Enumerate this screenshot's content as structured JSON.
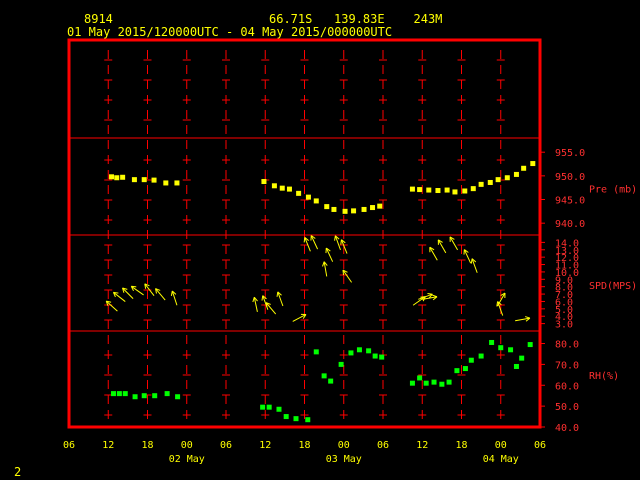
{
  "header": {
    "station_id": "8914",
    "location": "66.71S   139.83E    243M",
    "period": "01 May 2015/120000UTC - 04 May 2015/000000UTC"
  },
  "footer": {
    "page_number": "2"
  },
  "colors": {
    "frame": "#ff0000",
    "axis_text": "#ffff00",
    "pressure": "#ffff00",
    "wind": "#ffff00",
    "rh": "#00ff00",
    "label_text": "#ff3030"
  },
  "chart_data": {
    "type": "scatter",
    "x_unit": "hours since 01 May 2015 06UTC",
    "xlim": [
      0,
      72
    ],
    "x_tick_labels": [
      "06",
      "12",
      "18",
      "00",
      "06",
      "12",
      "18",
      "00",
      "06",
      "12",
      "18",
      "00",
      "06"
    ],
    "day_labels": [
      {
        "x": 18,
        "label": "02 May"
      },
      {
        "x": 42,
        "label": "03 May"
      },
      {
        "x": 66,
        "label": "04 May"
      }
    ],
    "panels": [
      {
        "name": "pressure",
        "label": "Pre (mb)",
        "ylim": [
          937.5,
          958.0
        ],
        "ticks": [
          "940.0",
          "945.0",
          "950.0",
          "955.0"
        ],
        "tick_values": [
          940,
          945,
          950,
          955
        ],
        "points": [
          [
            6.5,
            949.8
          ],
          [
            7.3,
            949.6
          ],
          [
            8.2,
            949.7
          ],
          [
            10,
            949.2
          ],
          [
            11.5,
            949.2
          ],
          [
            13,
            949.1
          ],
          [
            14.8,
            948.5
          ],
          [
            16.5,
            948.5
          ],
          [
            29.8,
            948.8
          ],
          [
            31.4,
            947.9
          ],
          [
            32.6,
            947.4
          ],
          [
            33.7,
            947.2
          ],
          [
            35.1,
            946.3
          ],
          [
            36.6,
            945.5
          ],
          [
            37.8,
            944.7
          ],
          [
            39.4,
            943.5
          ],
          [
            40.5,
            942.9
          ],
          [
            42.2,
            942.5
          ],
          [
            43.5,
            942.6
          ],
          [
            45.1,
            942.9
          ],
          [
            46.4,
            943.3
          ],
          [
            47.5,
            943.6
          ],
          [
            52.5,
            947.2
          ],
          [
            53.6,
            947.1
          ],
          [
            55,
            947
          ],
          [
            56.4,
            946.9
          ],
          [
            57.8,
            947
          ],
          [
            59,
            946.6
          ],
          [
            60.5,
            946.8
          ],
          [
            61.8,
            947.3
          ],
          [
            63,
            948.2
          ],
          [
            64.4,
            948.6
          ],
          [
            65.6,
            949.2
          ],
          [
            67,
            949.6
          ],
          [
            68.4,
            950.3
          ],
          [
            69.5,
            951.6
          ],
          [
            70.9,
            952.6
          ]
        ]
      },
      {
        "name": "wind",
        "label": "SPD(MPS)",
        "ylim": [
          2.0,
          15.0
        ],
        "ticks": [
          "3.0",
          "4.0",
          "5.0",
          "6.0",
          "7.0",
          "8.0",
          "9.0",
          "10.0",
          "11.0",
          "12.0",
          "13.0",
          "14.0"
        ],
        "tick_values": [
          3,
          4,
          5,
          6,
          7,
          8,
          9,
          10,
          11,
          12,
          13,
          14
        ],
        "vectors": [
          [
            7.4,
            6,
            5.5,
            -48
          ],
          [
            8.6,
            6,
            6.8,
            -52
          ],
          [
            9.8,
            6,
            7.2,
            -45
          ],
          [
            11.4,
            6,
            7.7,
            -55
          ],
          [
            13,
            6,
            7.6,
            -38
          ],
          [
            14.7,
            6,
            7,
            -40
          ],
          [
            16.5,
            6,
            6.3,
            -18
          ],
          [
            28.8,
            6,
            5.4,
            -12
          ],
          [
            30.4,
            6,
            5.7,
            -20
          ],
          [
            31.6,
            6,
            5.1,
            -40
          ],
          [
            32.7,
            6,
            6.2,
            -20
          ],
          [
            34.2,
            6,
            4.1,
            62
          ],
          [
            36.9,
            6,
            13.6,
            -22
          ],
          [
            38,
            6,
            13.9,
            -25
          ],
          [
            39.4,
            6,
            10.2,
            -10
          ],
          [
            40.3,
            6,
            12.2,
            -25
          ],
          [
            41.5,
            6,
            13.8,
            -20
          ],
          [
            42.5,
            6,
            13.3,
            -22
          ],
          [
            43.2,
            6,
            9.4,
            -35
          ],
          [
            52.6,
            6,
            6.3,
            55
          ],
          [
            53.4,
            6,
            7.1,
            70
          ],
          [
            54,
            6,
            7.1,
            80
          ],
          [
            56.3,
            6,
            12.4,
            -30
          ],
          [
            57.6,
            6,
            13.4,
            -30
          ],
          [
            59.4,
            6,
            13.8,
            -30
          ],
          [
            61.4,
            6,
            12,
            -25
          ],
          [
            62.4,
            6,
            10.7,
            -20
          ],
          [
            65.5,
            6,
            6.2,
            30
          ],
          [
            66.3,
            6,
            4.9,
            -20
          ],
          [
            68.2,
            6,
            4.2,
            80
          ]
        ]
      },
      {
        "name": "rh",
        "label": "RH(%)",
        "ylim": [
          40,
          86
        ],
        "ticks": [
          "40.0",
          "50.0",
          "60.0",
          "70.0",
          "80.0"
        ],
        "tick_values": [
          40,
          50,
          60,
          70,
          80
        ],
        "points": [
          [
            6.8,
            56
          ],
          [
            7.7,
            56
          ],
          [
            8.6,
            56
          ],
          [
            10.1,
            54.5
          ],
          [
            11.5,
            55
          ],
          [
            13.1,
            55
          ],
          [
            15,
            56
          ],
          [
            16.6,
            54.5
          ],
          [
            29.6,
            49.5
          ],
          [
            30.6,
            49.5
          ],
          [
            32.1,
            48.5
          ],
          [
            33.2,
            45
          ],
          [
            34.7,
            44
          ],
          [
            36.5,
            43.5
          ],
          [
            37.8,
            76
          ],
          [
            39,
            64.5
          ],
          [
            40,
            62
          ],
          [
            41.6,
            70
          ],
          [
            43.1,
            75.5
          ],
          [
            44.4,
            77
          ],
          [
            45.8,
            76.5
          ],
          [
            46.8,
            74
          ],
          [
            47.8,
            73.5
          ],
          [
            52.5,
            61
          ],
          [
            53.6,
            63.5
          ],
          [
            54.6,
            61
          ],
          [
            55.8,
            61.5
          ],
          [
            57,
            60.5
          ],
          [
            58.1,
            61.5
          ],
          [
            59.3,
            67
          ],
          [
            60.6,
            68
          ],
          [
            61.5,
            72
          ],
          [
            63,
            74
          ],
          [
            64.6,
            80.5
          ],
          [
            66,
            78
          ],
          [
            67.5,
            77
          ],
          [
            68.4,
            69
          ],
          [
            69.2,
            73
          ],
          [
            70.5,
            79.5
          ]
        ]
      }
    ]
  }
}
